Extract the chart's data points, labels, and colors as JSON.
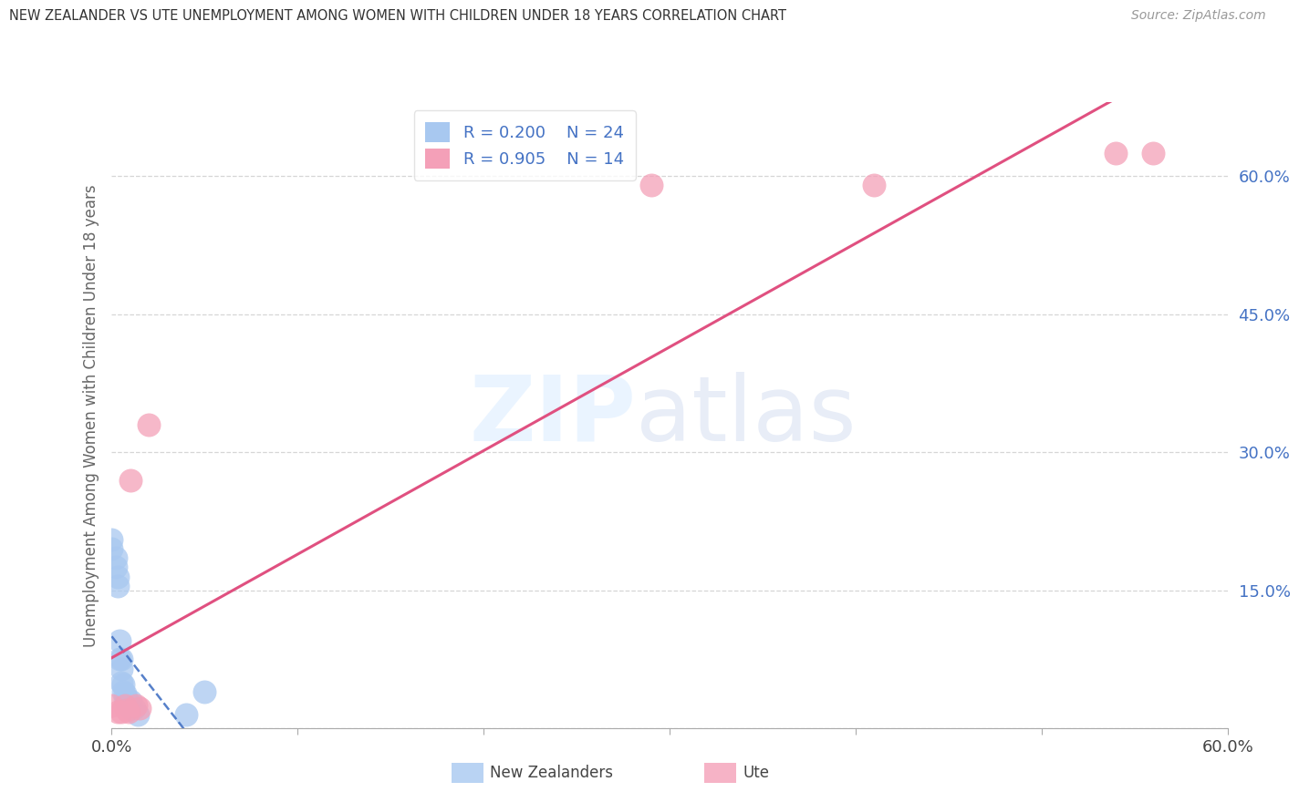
{
  "title": "NEW ZEALANDER VS UTE UNEMPLOYMENT AMONG WOMEN WITH CHILDREN UNDER 18 YEARS CORRELATION CHART",
  "source": "Source: ZipAtlas.com",
  "ylabel": "Unemployment Among Women with Children Under 18 years",
  "xlim": [
    0,
    0.6
  ],
  "ylim": [
    0,
    0.68
  ],
  "legend_nz_r": "0.200",
  "legend_nz_n": "24",
  "legend_ute_r": "0.905",
  "legend_ute_n": "14",
  "nz_color": "#a8c8f0",
  "ute_color": "#f4a0b8",
  "nz_line_color": "#4472c4",
  "ute_line_color": "#e05080",
  "nz_scatter_x": [
    0.0,
    0.0,
    0.002,
    0.002,
    0.003,
    0.003,
    0.004,
    0.004,
    0.005,
    0.005,
    0.005,
    0.006,
    0.006,
    0.007,
    0.007,
    0.008,
    0.008,
    0.009,
    0.01,
    0.01,
    0.012,
    0.014,
    0.04,
    0.05
  ],
  "nz_scatter_y": [
    0.205,
    0.195,
    0.185,
    0.175,
    0.165,
    0.155,
    0.095,
    0.075,
    0.075,
    0.065,
    0.05,
    0.048,
    0.04,
    0.038,
    0.032,
    0.032,
    0.028,
    0.028,
    0.03,
    0.022,
    0.022,
    0.015,
    0.015,
    0.04
  ],
  "ute_scatter_x": [
    0.0,
    0.003,
    0.005,
    0.007,
    0.008,
    0.009,
    0.01,
    0.013,
    0.015,
    0.02,
    0.29,
    0.41,
    0.54,
    0.56
  ],
  "ute_scatter_y": [
    0.025,
    0.018,
    0.018,
    0.025,
    0.02,
    0.018,
    0.27,
    0.025,
    0.022,
    0.33,
    0.59,
    0.59,
    0.625,
    0.625
  ],
  "background_color": "#ffffff",
  "grid_color": "#cccccc",
  "ytick_positions": [
    0.0,
    0.15,
    0.3,
    0.45,
    0.6
  ],
  "ytick_labels": [
    "",
    "15.0%",
    "30.0%",
    "45.0%",
    "60.0%"
  ],
  "xtick_positions": [
    0.0,
    0.1,
    0.2,
    0.3,
    0.4,
    0.5,
    0.6
  ],
  "xtick_labels": [
    "0.0%",
    "",
    "",
    "",
    "",
    "",
    "60.0%"
  ]
}
